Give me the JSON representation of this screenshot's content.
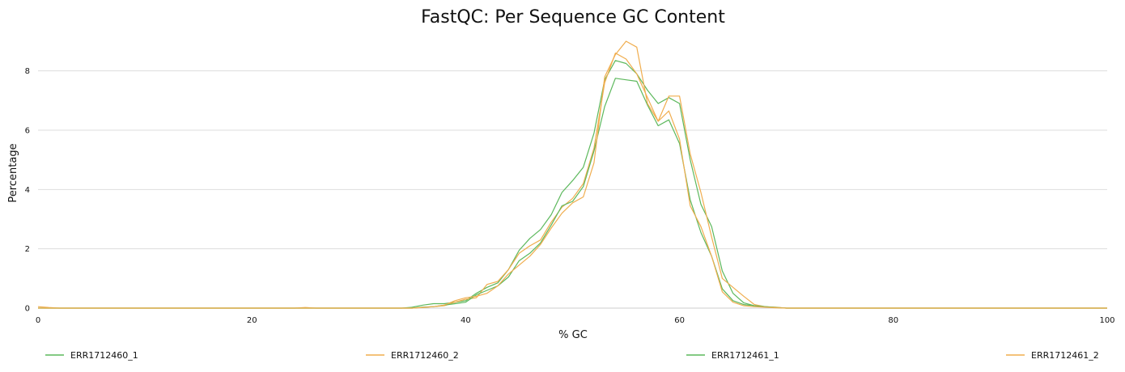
{
  "chart_data": {
    "type": "line",
    "title": "FastQC: Per Sequence GC Content",
    "xlabel": "% GC",
    "ylabel": "Percentage",
    "xlim": [
      0,
      100
    ],
    "ylim": [
      0,
      9.3
    ],
    "xticks": [
      0,
      20,
      40,
      60,
      80,
      100
    ],
    "yticks": [
      0,
      2,
      4,
      6,
      8
    ],
    "grid": "horizontal",
    "legend": "bottom",
    "x": [
      0,
      1,
      2,
      3,
      4,
      5,
      6,
      7,
      8,
      9,
      10,
      11,
      12,
      13,
      14,
      15,
      16,
      17,
      18,
      19,
      20,
      21,
      22,
      23,
      24,
      25,
      26,
      27,
      28,
      29,
      30,
      31,
      32,
      33,
      34,
      35,
      36,
      37,
      38,
      39,
      40,
      41,
      42,
      43,
      44,
      45,
      46,
      47,
      48,
      49,
      50,
      51,
      52,
      53,
      54,
      55,
      56,
      57,
      58,
      59,
      60,
      61,
      62,
      63,
      64,
      65,
      66,
      67,
      68,
      69,
      70,
      71,
      72,
      73,
      74,
      75,
      76,
      77,
      78,
      79,
      80,
      81,
      82,
      83,
      84,
      85,
      86,
      87,
      88,
      89,
      90,
      91,
      92,
      93,
      94,
      95,
      96,
      97,
      98,
      99,
      100
    ],
    "series": [
      {
        "name": "ERR1712460_1",
        "color": "#5cb85c",
        "values": [
          0.0,
          0.0,
          0.0,
          0.0,
          0.0,
          0.0,
          0.0,
          0.0,
          0.0,
          0.0,
          0.0,
          0.0,
          0.0,
          0.0,
          0.0,
          0.0,
          0.0,
          0.0,
          0.0,
          0.0,
          0.0,
          0.0,
          0.0,
          0.0,
          0.0,
          0.0,
          0.0,
          0.0,
          0.0,
          0.0,
          0.0,
          0.0,
          0.0,
          0.0,
          0.0,
          0.03,
          0.1,
          0.15,
          0.15,
          0.2,
          0.25,
          0.5,
          0.7,
          0.85,
          1.3,
          1.95,
          2.35,
          2.65,
          3.15,
          3.9,
          4.3,
          4.75,
          5.9,
          7.7,
          8.35,
          8.25,
          7.9,
          7.35,
          6.9,
          7.1,
          6.9,
          5.0,
          3.5,
          2.75,
          1.25,
          0.5,
          0.18,
          0.08,
          0.05,
          0.02,
          0.0,
          0.0,
          0.0,
          0.0,
          0.0,
          0.0,
          0.0,
          0.0,
          0.0,
          0.0,
          0.0,
          0.0,
          0.0,
          0.0,
          0.0,
          0.0,
          0.0,
          0.0,
          0.0,
          0.0,
          0.0,
          0.0,
          0.0,
          0.0,
          0.0,
          0.0,
          0.0,
          0.0,
          0.0,
          0.0,
          0.0
        ]
      },
      {
        "name": "ERR1712460_2",
        "color": "#f0ad4e",
        "values": [
          0.05,
          0.02,
          0.0,
          0.0,
          0.0,
          0.0,
          0.0,
          0.0,
          0.0,
          0.0,
          0.0,
          0.0,
          0.0,
          0.0,
          0.0,
          0.0,
          0.0,
          0.0,
          0.0,
          0.0,
          0.0,
          0.0,
          0.0,
          0.0,
          0.0,
          0.02,
          0.0,
          0.0,
          0.0,
          0.0,
          0.0,
          0.0,
          0.0,
          0.0,
          0.0,
          0.0,
          0.03,
          0.05,
          0.08,
          0.2,
          0.3,
          0.35,
          0.8,
          0.9,
          1.3,
          1.85,
          2.1,
          2.3,
          2.9,
          3.4,
          3.7,
          4.2,
          5.4,
          7.6,
          8.6,
          8.4,
          7.9,
          7.1,
          6.3,
          7.15,
          7.15,
          5.2,
          3.9,
          2.4,
          1.0,
          0.7,
          0.4,
          0.12,
          0.05,
          0.03,
          0.0,
          0.0,
          0.0,
          0.0,
          0.0,
          0.0,
          0.0,
          0.0,
          0.0,
          0.0,
          0.0,
          0.0,
          0.0,
          0.0,
          0.0,
          0.0,
          0.0,
          0.0,
          0.0,
          0.0,
          0.0,
          0.0,
          0.0,
          0.0,
          0.0,
          0.0,
          0.0,
          0.0,
          0.0,
          0.0,
          0.0
        ]
      },
      {
        "name": "ERR1712461_1",
        "color": "#5cb85c",
        "values": [
          0.0,
          0.0,
          0.0,
          0.0,
          0.0,
          0.0,
          0.0,
          0.0,
          0.0,
          0.0,
          0.0,
          0.0,
          0.0,
          0.0,
          0.0,
          0.0,
          0.0,
          0.0,
          0.0,
          0.0,
          0.0,
          0.0,
          0.0,
          0.0,
          0.0,
          0.0,
          0.0,
          0.0,
          0.0,
          0.0,
          0.0,
          0.0,
          0.0,
          0.0,
          0.0,
          0.0,
          0.03,
          0.05,
          0.1,
          0.15,
          0.2,
          0.45,
          0.6,
          0.75,
          1.05,
          1.6,
          1.85,
          2.2,
          2.8,
          3.45,
          3.6,
          4.1,
          5.3,
          6.8,
          7.75,
          7.7,
          7.65,
          6.85,
          6.15,
          6.35,
          5.55,
          3.65,
          2.55,
          1.75,
          0.65,
          0.25,
          0.12,
          0.08,
          0.05,
          0.02,
          0.0,
          0.0,
          0.0,
          0.0,
          0.0,
          0.0,
          0.0,
          0.0,
          0.0,
          0.0,
          0.0,
          0.0,
          0.0,
          0.0,
          0.0,
          0.0,
          0.0,
          0.0,
          0.0,
          0.0,
          0.0,
          0.0,
          0.0,
          0.0,
          0.0,
          0.0,
          0.0,
          0.0,
          0.0,
          0.0,
          0.0
        ]
      },
      {
        "name": "ERR1712461_2",
        "color": "#f0ad4e",
        "values": [
          0.0,
          0.0,
          0.0,
          0.0,
          0.0,
          0.0,
          0.0,
          0.0,
          0.0,
          0.0,
          0.0,
          0.0,
          0.0,
          0.0,
          0.0,
          0.0,
          0.0,
          0.0,
          0.0,
          0.0,
          0.0,
          0.0,
          0.0,
          0.0,
          0.0,
          0.0,
          0.0,
          0.0,
          0.0,
          0.0,
          0.0,
          0.0,
          0.0,
          0.0,
          0.0,
          0.0,
          0.02,
          0.05,
          0.1,
          0.25,
          0.35,
          0.4,
          0.5,
          0.75,
          1.15,
          1.45,
          1.75,
          2.15,
          2.7,
          3.2,
          3.55,
          3.75,
          4.9,
          7.8,
          8.55,
          9.0,
          8.8,
          6.9,
          6.3,
          6.65,
          5.7,
          3.45,
          2.75,
          1.75,
          0.55,
          0.2,
          0.08,
          0.05,
          0.03,
          0.01,
          0.0,
          0.0,
          0.0,
          0.0,
          0.0,
          0.0,
          0.0,
          0.0,
          0.0,
          0.0,
          0.0,
          0.0,
          0.0,
          0.0,
          0.0,
          0.0,
          0.0,
          0.0,
          0.0,
          0.0,
          0.0,
          0.0,
          0.0,
          0.0,
          0.0,
          0.0,
          0.0,
          0.0,
          0.0,
          0.0,
          0.0
        ]
      }
    ]
  }
}
